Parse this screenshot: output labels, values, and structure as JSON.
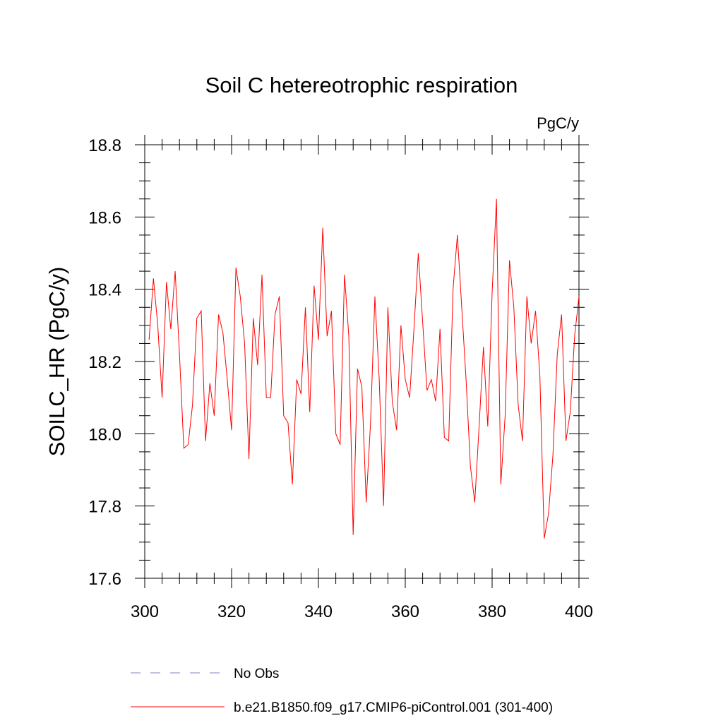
{
  "chart_data": {
    "type": "line",
    "title": "Soil C hetereotrophic respiration",
    "units": "PgC/y",
    "xlabel": "",
    "ylabel": "SOILC_HR  (PgC/y)",
    "xlim": [
      300,
      400
    ],
    "ylim": [
      17.6,
      18.8
    ],
    "xticks": [
      300,
      320,
      340,
      360,
      380,
      400
    ],
    "yticks": [
      17.6,
      17.8,
      18.0,
      18.2,
      18.4,
      18.6,
      18.8
    ],
    "ytick_labels": [
      "17.6",
      "17.8",
      "18.0",
      "18.2",
      "18.4",
      "18.6",
      "18.8"
    ],
    "grid": false,
    "legend_position": "bottom",
    "series": [
      {
        "name": "No Obs",
        "color": "#8080c0",
        "style": "dashed",
        "x": [],
        "values": []
      },
      {
        "name": "b.e21.B1850.f09_g17.CMIP6-piControl.001 (301-400)",
        "color": "#ff0000",
        "style": "solid",
        "x": [
          301,
          302,
          303,
          304,
          305,
          306,
          307,
          308,
          309,
          310,
          311,
          312,
          313,
          314,
          315,
          316,
          317,
          318,
          319,
          320,
          321,
          322,
          323,
          324,
          325,
          326,
          327,
          328,
          329,
          330,
          331,
          332,
          333,
          334,
          335,
          336,
          337,
          338,
          339,
          340,
          341,
          342,
          343,
          344,
          345,
          346,
          347,
          348,
          349,
          350,
          351,
          352,
          353,
          354,
          355,
          356,
          357,
          358,
          359,
          360,
          361,
          362,
          363,
          364,
          365,
          366,
          367,
          368,
          369,
          370,
          371,
          372,
          373,
          374,
          375,
          376,
          377,
          378,
          379,
          380,
          381,
          382,
          383,
          384,
          385,
          386,
          387,
          388,
          389,
          390,
          391,
          392,
          393,
          394,
          395,
          396,
          397,
          398,
          399,
          400
        ],
        "values": [
          18.26,
          18.43,
          18.3,
          18.1,
          18.42,
          18.29,
          18.45,
          18.22,
          17.96,
          17.97,
          18.08,
          18.32,
          18.34,
          17.98,
          18.14,
          18.05,
          18.33,
          18.28,
          18.15,
          18.01,
          18.46,
          18.38,
          18.25,
          17.93,
          18.32,
          18.19,
          18.44,
          18.1,
          18.1,
          18.33,
          18.38,
          18.05,
          18.03,
          17.86,
          18.15,
          18.11,
          18.35,
          18.06,
          18.41,
          18.26,
          18.57,
          18.27,
          18.34,
          18.0,
          17.97,
          18.44,
          18.27,
          17.72,
          18.18,
          18.13,
          17.81,
          18.03,
          18.38,
          18.15,
          17.8,
          18.35,
          18.09,
          18.01,
          18.3,
          18.15,
          18.1,
          18.29,
          18.5,
          18.31,
          18.12,
          18.15,
          18.09,
          18.29,
          17.99,
          17.98,
          18.4,
          18.55,
          18.35,
          18.15,
          17.91,
          17.81,
          18.02,
          18.24,
          18.02,
          18.39,
          18.65,
          17.86,
          18.05,
          18.48,
          18.35,
          18.08,
          17.98,
          18.38,
          18.25,
          18.34,
          18.16,
          17.71,
          17.78,
          17.94,
          18.22,
          18.33,
          17.98,
          18.06,
          18.27,
          18.38
        ]
      }
    ]
  }
}
